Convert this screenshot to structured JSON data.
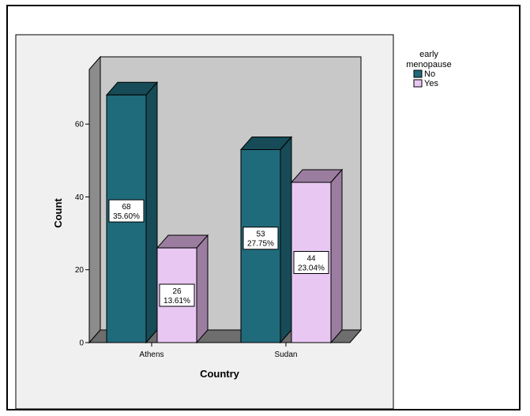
{
  "chart_data": {
    "type": "bar",
    "categories": [
      "Athens",
      "Sudan"
    ],
    "series": [
      {
        "name": "No",
        "values": [
          68,
          53
        ],
        "percent_labels": [
          "35.60%",
          "27.75%"
        ],
        "color": "#1f6a7b"
      },
      {
        "name": "Yes",
        "values": [
          26,
          44
        ],
        "percent_labels": [
          "13.61%",
          "23.04%"
        ],
        "color": "#e8c8f2"
      }
    ],
    "xlabel": "Country",
    "ylabel": "Count",
    "ylim": [
      0,
      75
    ],
    "yticks": [
      0,
      20,
      40,
      60
    ],
    "grid": false,
    "legend": {
      "title_lines": [
        "early",
        "menopause"
      ],
      "placement": "top-right",
      "entries": [
        "No",
        "Yes"
      ]
    },
    "style": {
      "three_d": true,
      "background": "#c8c8c8",
      "shade_no": "#164b57",
      "shade_yes": "#9a7d9f"
    }
  }
}
